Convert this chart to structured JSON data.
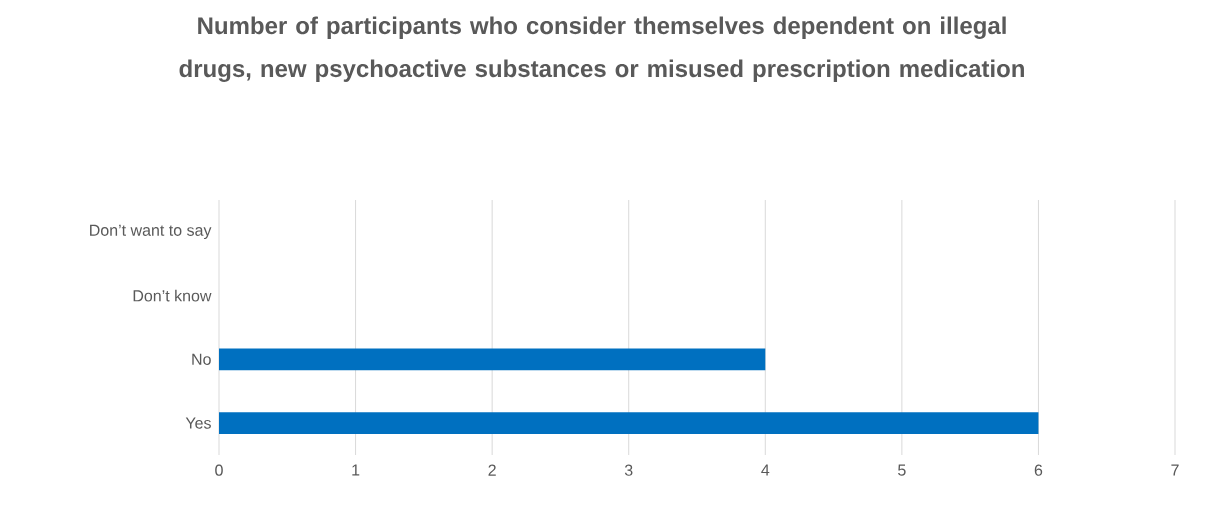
{
  "chart_data": {
    "type": "bar",
    "orientation": "horizontal",
    "title": "Number of participants who consider themselves dependent on illegal drugs, new psychoactive substances or misused prescription medication",
    "categories": [
      "Don’t want to say",
      "Don’t know",
      "No",
      "Yes"
    ],
    "values": [
      0,
      0,
      4,
      6
    ],
    "color": "#0070c0",
    "xlim": [
      0,
      7
    ],
    "xticks": [
      0,
      1,
      2,
      3,
      4,
      5,
      6,
      7
    ],
    "grid": "x"
  }
}
